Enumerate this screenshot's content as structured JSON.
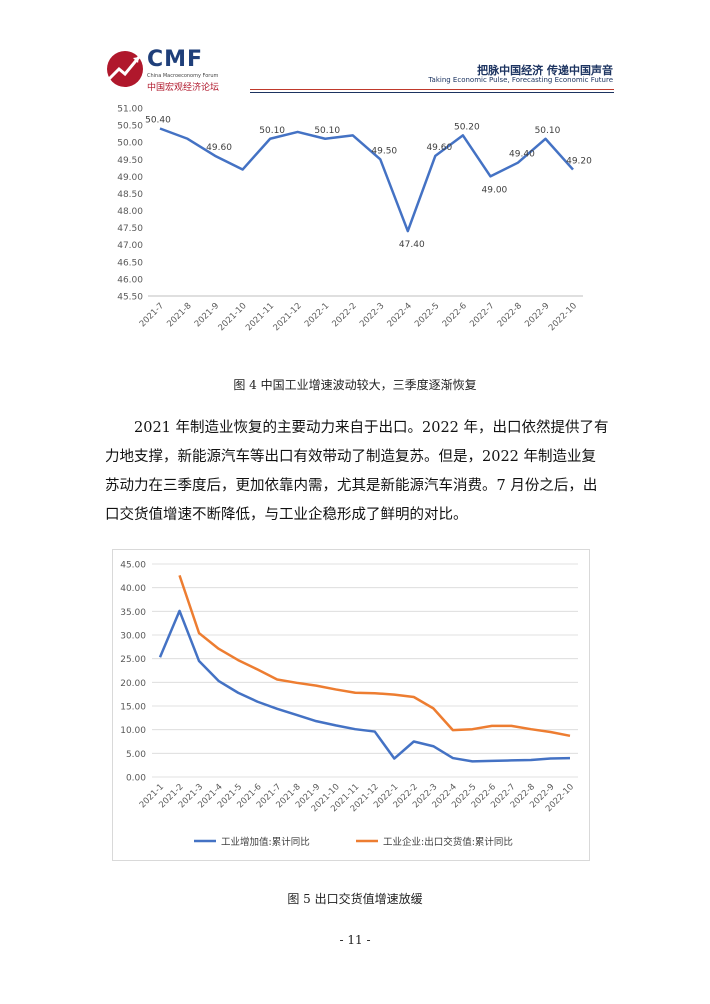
{
  "header": {
    "logo_text": "CMF",
    "logo_subtitle": "China Macroeconomy Forum",
    "logo_cn": "中国宏观经济论坛",
    "slogan_cn": "把脉中国经济  传递中国声音",
    "slogan_en": "Taking Economic Pulse, Forecasting Economic Future"
  },
  "figure4": {
    "caption": "图 4  中国工业增速波动较大，三季度逐渐恢复"
  },
  "paragraph": "2021 年制造业恢复的主要动力来自于出口。2022 年，出口依然提供了有力地支撑，新能源汽车等出口有效带动了制造复苏。但是，2022 年制造业复苏动力在三季度后，更加依靠内需，尤其是新能源汽车消费。7 月份之后，出口交货值增速不断降低，与工业企稳形成了鲜明的对比。",
  "figure5": {
    "caption": "图 5  出口交货值增速放缓"
  },
  "page_number": "- 11 -",
  "chart_data": [
    {
      "type": "line",
      "title": "",
      "xlabel": "",
      "ylabel": "",
      "ylim": [
        45.5,
        51.0
      ],
      "yticks": [
        "45.50",
        "46.00",
        "46.50",
        "47.00",
        "47.50",
        "48.00",
        "48.50",
        "49.00",
        "49.50",
        "50.00",
        "50.50",
        "51.00"
      ],
      "categories": [
        "2021-7",
        "2021-8",
        "2021-9",
        "2021-10",
        "2021-11",
        "2021-12",
        "2022-1",
        "2022-2",
        "2022-3",
        "2022-4",
        "2022-5",
        "2022-6",
        "2022-7",
        "2022-8",
        "2022-9",
        "2022-10"
      ],
      "series": [
        {
          "values": [
            50.4,
            50.1,
            49.6,
            49.2,
            50.1,
            50.3,
            50.1,
            50.2,
            49.5,
            47.4,
            49.6,
            50.2,
            49.0,
            49.4,
            50.1,
            49.2
          ],
          "color": "#4472c4"
        }
      ],
      "data_labels": [
        "50.40",
        "",
        "49.60",
        "",
        "50.10",
        "",
        "50.10",
        "",
        "49.50",
        "47.40",
        "49.60",
        "50.20",
        "49.00",
        "49.40",
        "50.10",
        "49.20"
      ],
      "grid": false
    },
    {
      "type": "line",
      "title": "",
      "ylim": [
        0,
        45
      ],
      "yticks": [
        "0.00",
        "5.00",
        "10.00",
        "15.00",
        "20.00",
        "25.00",
        "30.00",
        "35.00",
        "40.00",
        "45.00"
      ],
      "categories": [
        "2021-1",
        "2021-2",
        "2021-3",
        "2021-4",
        "2021-5",
        "2021-6",
        "2021-7",
        "2021-8",
        "2021-9",
        "2021-10",
        "2021-11",
        "2021-12",
        "2022-1",
        "2022-2",
        "2022-3",
        "2022-4",
        "2022-5",
        "2022-6",
        "2022-7",
        "2022-8",
        "2022-9",
        "2022-10"
      ],
      "series": [
        {
          "name": "工业增加值:累计同比",
          "color": "#4472c4",
          "values": [
            null,
            35.1,
            24.5,
            20.3,
            17.8,
            15.9,
            14.4,
            13.1,
            11.8,
            10.9,
            10.1,
            9.6,
            3.9,
            7.5,
            6.5,
            4.0,
            3.3,
            3.4,
            3.5,
            3.6,
            3.9,
            4.0
          ],
          "start_value": 25.3
        },
        {
          "name": "工业企业:出口交货值:累计同比",
          "color": "#ed7d31",
          "values": [
            null,
            42.6,
            30.4,
            27.1,
            24.7,
            22.7,
            20.6,
            19.9,
            19.3,
            18.5,
            17.8,
            17.7,
            17.4,
            16.9,
            14.5,
            9.9,
            10.1,
            10.8,
            10.8,
            10.1,
            9.5,
            8.7
          ]
        }
      ],
      "grid": true,
      "legend": "bottom"
    }
  ]
}
